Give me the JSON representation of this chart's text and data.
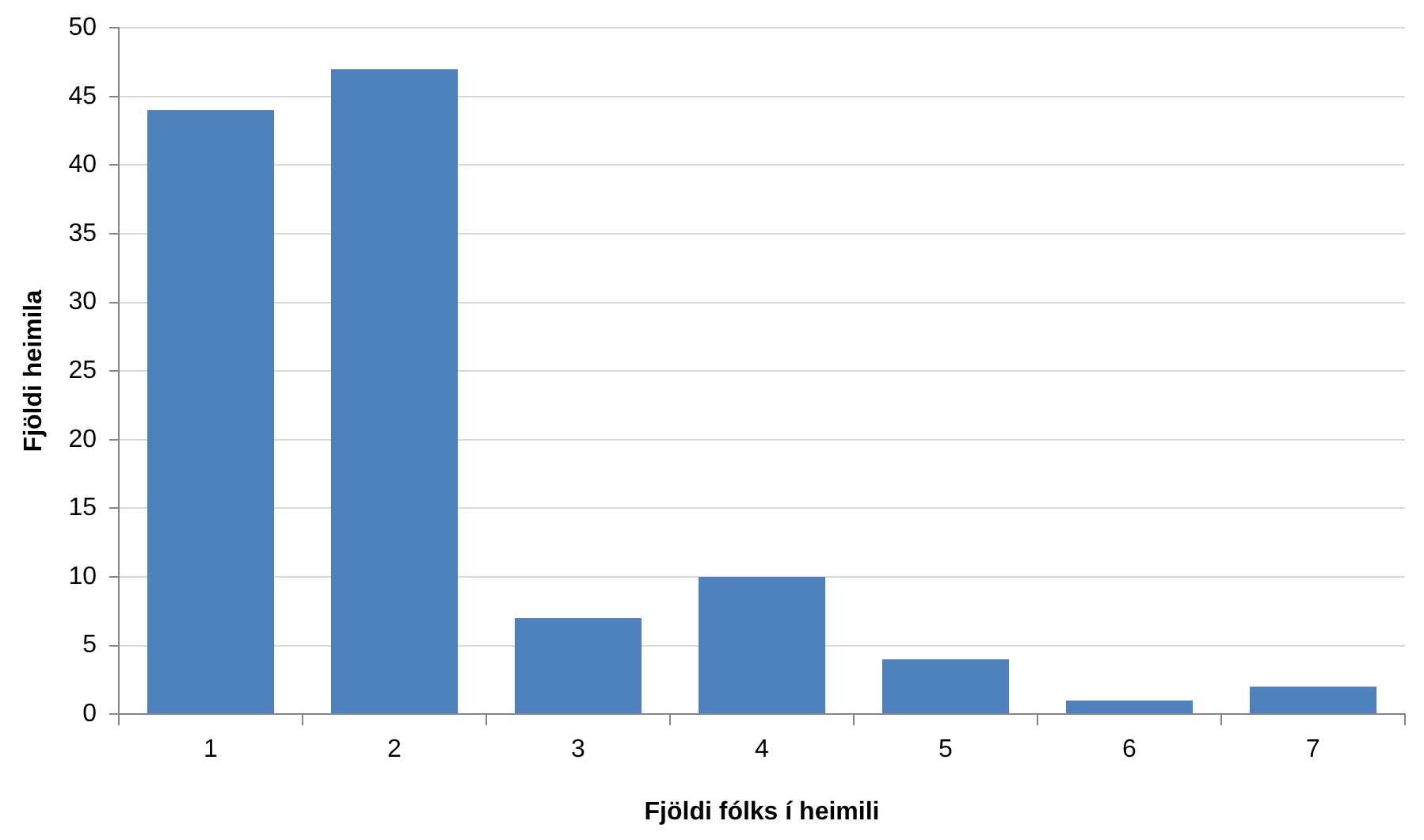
{
  "chart_data": {
    "type": "bar",
    "xlabel": "Fjöldi fólks í heimili",
    "ylabel": "Fjöldi heimila",
    "categories": [
      "1",
      "2",
      "3",
      "4",
      "5",
      "6",
      "7"
    ],
    "values": [
      44,
      47,
      7,
      10,
      4,
      1,
      2
    ],
    "color": "#4f81bd",
    "ylim": [
      0,
      50
    ],
    "yticks": [
      0,
      5,
      10,
      15,
      20,
      25,
      30,
      35,
      40,
      45,
      50
    ],
    "grid": "y",
    "legend": false
  }
}
